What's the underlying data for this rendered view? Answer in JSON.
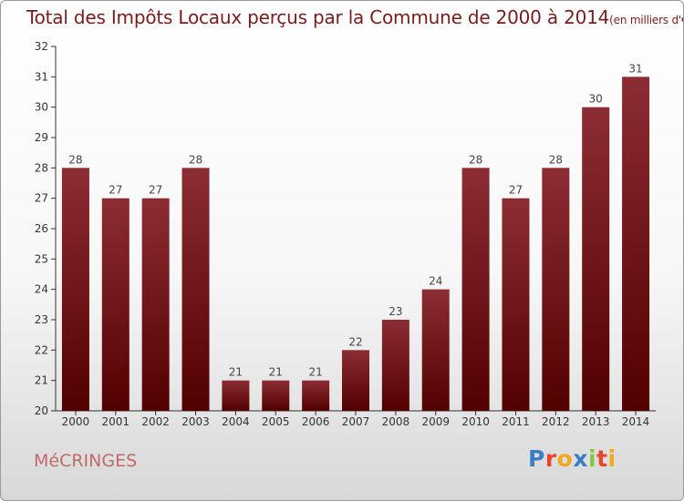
{
  "header": {
    "title": "Total des Impôts Locaux perçus par la Commune de 2000 à 2014",
    "unit": "(en milliers d'€)"
  },
  "footer": {
    "commune": "MéCRINGES",
    "logo_letters": [
      "P",
      "r",
      "o",
      "x",
      "i",
      "t",
      "i"
    ],
    "logo_colors": [
      "#3a7fc4",
      "#e8462b",
      "#f4a81c",
      "#3a7fc4",
      "#8bc53f",
      "#e8462b",
      "#f4a81c"
    ]
  },
  "colors": {
    "bar_top": "#8c2d34",
    "bar_bottom": "#520000",
    "title": "#7a1c1c",
    "axis": "#333333"
  },
  "chart_data": {
    "type": "bar",
    "title": "Total des Impôts Locaux perçus par la Commune de 2000 à 2014",
    "categories": [
      "2000",
      "2001",
      "2002",
      "2003",
      "2004",
      "2005",
      "2006",
      "2007",
      "2008",
      "2009",
      "2010",
      "2011",
      "2012",
      "2013",
      "2014"
    ],
    "values": [
      28,
      27,
      27,
      28,
      21,
      21,
      21,
      22,
      23,
      24,
      28,
      27,
      28,
      30,
      31
    ],
    "ylim": [
      20,
      32
    ],
    "yticks": [
      20,
      21,
      22,
      23,
      24,
      25,
      26,
      27,
      28,
      29,
      30,
      31,
      32
    ],
    "xlabel": "",
    "ylabel": "",
    "grid": false,
    "data_labels": true
  }
}
